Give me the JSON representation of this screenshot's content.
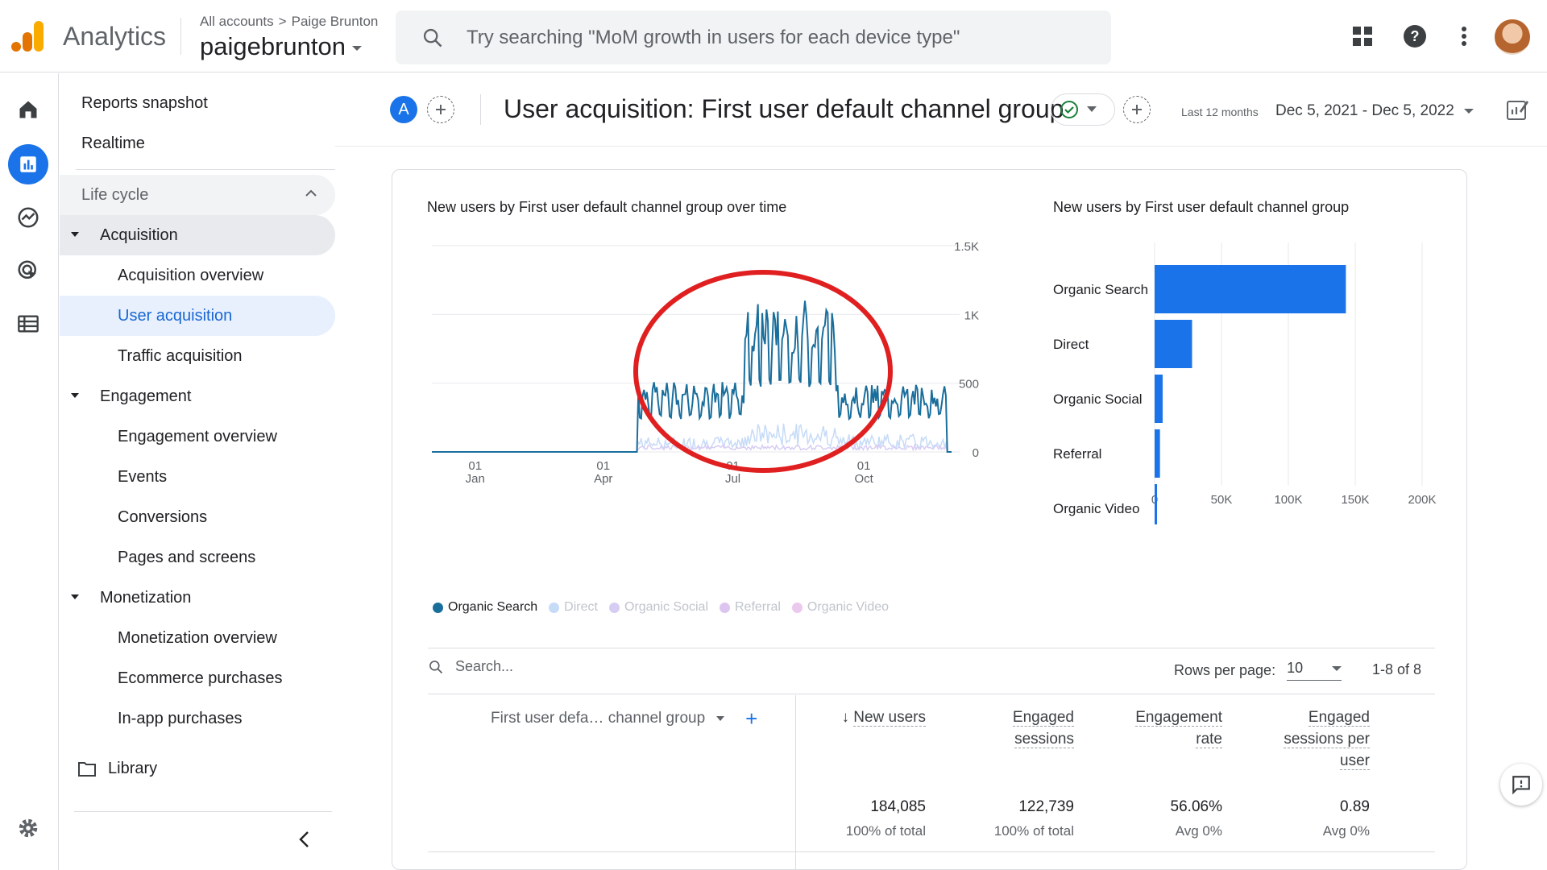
{
  "app": {
    "name": "Analytics"
  },
  "header": {
    "breadcrumb_parent": "All accounts",
    "breadcrumb_child": "Paige Brunton",
    "account": "paigebrunton",
    "search_placeholder": "Try searching \"MoM growth in users for each device type\""
  },
  "nav": {
    "reports_snapshot": "Reports snapshot",
    "realtime": "Realtime",
    "lifecycle": "Life cycle",
    "acquisition": "Acquisition",
    "acquisition_items": [
      "Acquisition overview",
      "User acquisition",
      "Traffic acquisition"
    ],
    "engagement": "Engagement",
    "engagement_items": [
      "Engagement overview",
      "Events",
      "Conversions",
      "Pages and screens"
    ],
    "monetization": "Monetization",
    "monetization_items": [
      "Monetization overview",
      "Ecommerce purchases",
      "In-app purchases"
    ],
    "library": "Library"
  },
  "report": {
    "badge": "A",
    "title": "User acquisition: First user default channel group",
    "date_label": "Last 12 months",
    "date_range": "Dec 5, 2021 - Dec 5, 2022"
  },
  "line_title": "New users by First user default channel group over time",
  "bar_title": "New users by First user default channel group",
  "chart_data": [
    {
      "type": "line",
      "title": "New users by First user default channel group over time",
      "x_ticks": [
        [
          "01",
          "Jan"
        ],
        [
          "01",
          "Apr"
        ],
        [
          "01",
          "Jul"
        ],
        [
          "01",
          "Oct"
        ]
      ],
      "y_ticks": [
        "0",
        "500",
        "1K",
        "1.5K"
      ],
      "ylim": [
        0,
        1500
      ],
      "series": [
        {
          "name": "Organic Search",
          "color": "#1a6e9c",
          "description_levels": {
            "Dec-Feb": 0,
            "Mar-Jun": [
              220,
              520
            ],
            "Jul-Aug": [
              450,
              1130
            ],
            "Sep-Dec": [
              240,
              500
            ]
          }
        },
        {
          "name": "Direct",
          "color": "#c6dbf7"
        },
        {
          "name": "Organic Social",
          "color": "#d7cdf3"
        },
        {
          "name": "Referral",
          "color": "#dcc6ef"
        },
        {
          "name": "Organic Video",
          "color": "#ebc8ee"
        }
      ]
    },
    {
      "type": "bar",
      "title": "New users by First user default channel group",
      "orientation": "horizontal",
      "categories": [
        "Organic Search",
        "Direct",
        "Organic Social",
        "Referral",
        "Organic Video"
      ],
      "values": [
        143000,
        28000,
        6000,
        4000,
        1000
      ],
      "x_ticks": [
        "0",
        "50K",
        "100K",
        "150K",
        "200K"
      ],
      "xlim": [
        0,
        200000
      ],
      "color": "#1a73e8"
    }
  ],
  "table": {
    "search_placeholder": "Search...",
    "rows_per_page_label": "Rows per page:",
    "rows_per_page": "10",
    "pager": "1-8 of 8",
    "dimension": "First user defa… channel group",
    "columns": [
      {
        "label_lines": [
          "New users"
        ],
        "value": "184,085",
        "sub": "100% of total",
        "sorted": true
      },
      {
        "label_lines": [
          "Engaged",
          "sessions"
        ],
        "value": "122,739",
        "sub": "100% of total"
      },
      {
        "label_lines": [
          "Engagement",
          "rate"
        ],
        "value": "56.06%",
        "sub": "Avg 0%"
      },
      {
        "label_lines": [
          "Engaged",
          "sessions per",
          "user"
        ],
        "value": "0.89",
        "sub": "Avg 0%"
      }
    ]
  }
}
